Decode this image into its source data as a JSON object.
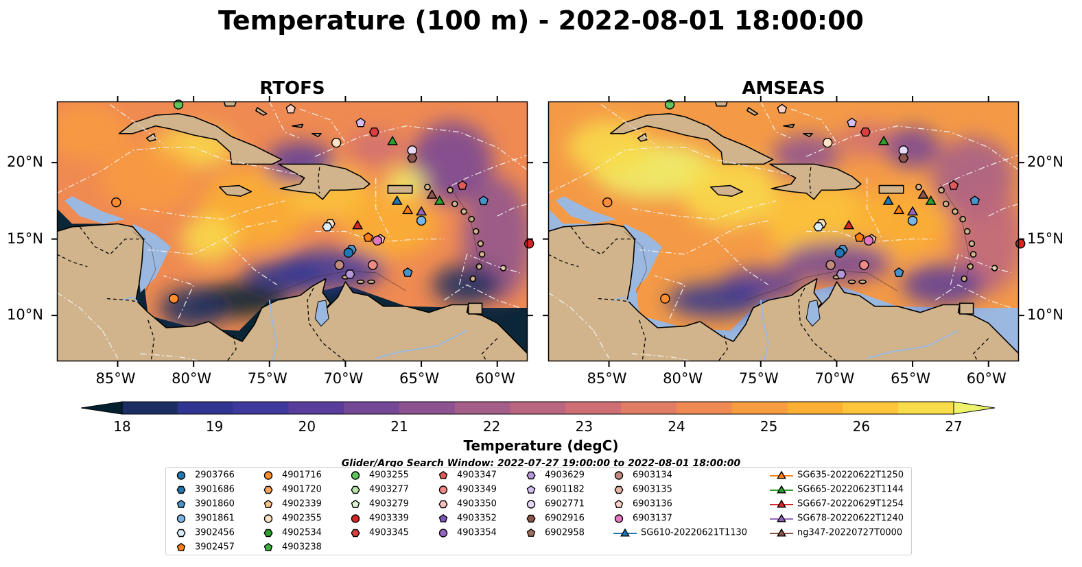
{
  "title": "Temperature (100 m) - 2022-08-01 18:00:00",
  "panels": [
    {
      "title": "RTOFS",
      "variant": "rtofs"
    },
    {
      "title": "AMSEAS",
      "variant": "amseas"
    }
  ],
  "lat_ticks": [
    "20°N",
    "15°N",
    "10°N"
  ],
  "lon_ticks": [
    "85°W",
    "80°W",
    "75°W",
    "70°W",
    "65°W",
    "60°W"
  ],
  "map_extent": {
    "lon": [
      -89,
      -58
    ],
    "lat": [
      7,
      24
    ]
  },
  "colorbar": {
    "label": "Temperature (degC)",
    "ticks": [
      "18",
      "19",
      "20",
      "21",
      "22",
      "23",
      "24",
      "25",
      "26",
      "27"
    ],
    "range": [
      18,
      27
    ],
    "extend": "both",
    "colormap": [
      "#03202f",
      "#1a2e63",
      "#2f3591",
      "#3f389d",
      "#593d9b",
      "#744797",
      "#8d5391",
      "#a55d89",
      "#bb6680",
      "#cf6f74",
      "#e17c65",
      "#ef8a52",
      "#f89c40",
      "#fcb033",
      "#fdc539",
      "#f9dc4a",
      "#eef36b"
    ]
  },
  "search_window": "Glider/Argo Search Window: 2022-07-27 19:00:00 to 2022-08-01 18:00:00",
  "colors": {
    "land": "#d2b48c",
    "shallow": "#9bb9e0",
    "coast": "#000000"
  },
  "legend": [
    {
      "label": "2903766",
      "marker": "circle",
      "color": "#1f77b4"
    },
    {
      "label": "3901686",
      "marker": "hexagon",
      "color": "#1f77b4"
    },
    {
      "label": "3901860",
      "marker": "pentagon",
      "color": "#4a93c8"
    },
    {
      "label": "3901861",
      "marker": "circle",
      "color": "#79b6e6"
    },
    {
      "label": "3902456",
      "marker": "hexagon",
      "color": "#d9ecf7"
    },
    {
      "label": "3902457",
      "marker": "pentagon",
      "color": "#ff7f0e"
    },
    {
      "label": "4901716",
      "marker": "circle",
      "color": "#ff8c2e"
    },
    {
      "label": "4901720",
      "marker": "hexagon",
      "color": "#ffa85c"
    },
    {
      "label": "4902339",
      "marker": "pentagon",
      "color": "#ffc28a"
    },
    {
      "label": "4902355",
      "marker": "circle",
      "color": "#fde3c3"
    },
    {
      "label": "4902534",
      "marker": "hexagon",
      "color": "#2ca02c"
    },
    {
      "label": "4903238",
      "marker": "pentagon",
      "color": "#3cb33c"
    },
    {
      "label": "4903255",
      "marker": "circle",
      "color": "#5ec45e"
    },
    {
      "label": "4903277",
      "marker": "hexagon",
      "color": "#b9e6a8"
    },
    {
      "label": "4903279",
      "marker": "pentagon",
      "color": "#ddf5cf"
    },
    {
      "label": "4903339",
      "marker": "circle",
      "color": "#d62728"
    },
    {
      "label": "4903345",
      "marker": "hexagon",
      "color": "#d84040"
    },
    {
      "label": "4903347",
      "marker": "pentagon",
      "color": "#e05a5a"
    },
    {
      "label": "4903349",
      "marker": "circle",
      "color": "#f08a86"
    },
    {
      "label": "4903350",
      "marker": "hexagon",
      "color": "#f8c0bc"
    },
    {
      "label": "4903352",
      "marker": "pentagon",
      "color": "#7e57b8"
    },
    {
      "label": "4903354",
      "marker": "circle",
      "color": "#9467bd"
    },
    {
      "label": "4903629",
      "marker": "hexagon",
      "color": "#b497d6"
    },
    {
      "label": "6901182",
      "marker": "pentagon",
      "color": "#d4bff0"
    },
    {
      "label": "6902771",
      "marker": "circle",
      "color": "#e7d8f7"
    },
    {
      "label": "6902916",
      "marker": "hexagon",
      "color": "#8c564b"
    },
    {
      "label": "6902958",
      "marker": "pentagon",
      "color": "#a0705f"
    },
    {
      "label": "6903134",
      "marker": "circle",
      "color": "#c08a7d"
    },
    {
      "label": "6903135",
      "marker": "hexagon",
      "color": "#e8b5a8"
    },
    {
      "label": "6903136",
      "marker": "pentagon",
      "color": "#fad3c4"
    },
    {
      "label": "6903137",
      "marker": "circle",
      "color": "#e377c2"
    },
    {
      "label": "SG610-20220621T1130",
      "marker": "triangle",
      "color": "#1f77b4",
      "line": true
    },
    {
      "label": "SG635-20220622T1250",
      "marker": "triangle",
      "color": "#ff7f0e",
      "line": true
    },
    {
      "label": "SG665-20220623T1144",
      "marker": "triangle",
      "color": "#2ca02c",
      "line": true
    },
    {
      "label": "SG667-20220629T1254",
      "marker": "triangle",
      "color": "#d62728",
      "line": true
    },
    {
      "label": "SG678-20220622T1240",
      "marker": "triangle",
      "color": "#9467bd",
      "line": true
    },
    {
      "label": "ng347-20220727T0000",
      "marker": "triangle",
      "color": "#8c564b",
      "line": true
    }
  ],
  "observations": [
    {
      "lon": -81.0,
      "lat": 23.8,
      "marker": "circle",
      "color": "#5ec45e"
    },
    {
      "lon": -73.6,
      "lat": 23.5,
      "marker": "pentagon",
      "color": "#fad3c4"
    },
    {
      "lon": -69.0,
      "lat": 22.6,
      "marker": "pentagon",
      "color": "#d4bff0"
    },
    {
      "lon": -68.1,
      "lat": 22.0,
      "marker": "hexagon",
      "color": "#d84040"
    },
    {
      "lon": -66.9,
      "lat": 21.4,
      "marker": "triangle",
      "color": "#2ca02c"
    },
    {
      "lon": -70.6,
      "lat": 21.3,
      "marker": "circle",
      "color": "#fde3c3"
    },
    {
      "lon": -65.6,
      "lat": 20.8,
      "marker": "circle",
      "color": "#e7d8f7"
    },
    {
      "lon": -65.6,
      "lat": 20.3,
      "marker": "hexagon",
      "color": "#8c564b"
    },
    {
      "lon": -62.3,
      "lat": 18.5,
      "marker": "pentagon",
      "color": "#e05a5a"
    },
    {
      "lon": -64.3,
      "lat": 17.9,
      "marker": "triangle",
      "color": "#8c564b"
    },
    {
      "lon": -63.8,
      "lat": 17.5,
      "marker": "triangle",
      "color": "#2ca02c"
    },
    {
      "lon": -66.6,
      "lat": 17.5,
      "marker": "triangle",
      "color": "#1f77b4"
    },
    {
      "lon": -60.9,
      "lat": 17.5,
      "marker": "pentagon",
      "color": "#4a93c8"
    },
    {
      "lon": -85.1,
      "lat": 17.4,
      "marker": "circle",
      "color": "#ff8c2e"
    },
    {
      "lon": -65.9,
      "lat": 16.9,
      "marker": "triangle",
      "color": "#ff7f0e"
    },
    {
      "lon": -65.0,
      "lat": 16.8,
      "marker": "triangle",
      "color": "#9467bd"
    },
    {
      "lon": -65.0,
      "lat": 16.2,
      "marker": "circle",
      "color": "#79b6e6"
    },
    {
      "lon": -71.0,
      "lat": 16.0,
      "marker": "hexagon",
      "color": "#fde3c3"
    },
    {
      "lon": -71.2,
      "lat": 15.8,
      "marker": "hexagon",
      "color": "#d9ecf7"
    },
    {
      "lon": -69.2,
      "lat": 15.9,
      "marker": "triangle",
      "color": "#d62728"
    },
    {
      "lon": -68.5,
      "lat": 15.1,
      "marker": "pentagon",
      "color": "#ff7f0e"
    },
    {
      "lon": -67.7,
      "lat": 15.0,
      "marker": "pentagon",
      "color": "#f8c0bc"
    },
    {
      "lon": -67.9,
      "lat": 14.9,
      "marker": "circle",
      "color": "#e377c2"
    },
    {
      "lon": -57.9,
      "lat": 14.7,
      "marker": "circle",
      "color": "#d62728"
    },
    {
      "lon": -69.6,
      "lat": 14.3,
      "marker": "hexagon",
      "color": "#4a93c8"
    },
    {
      "lon": -69.8,
      "lat": 14.1,
      "marker": "circle",
      "color": "#1f77b4"
    },
    {
      "lon": -70.4,
      "lat": 13.3,
      "marker": "circle",
      "color": "#c08a7d"
    },
    {
      "lon": -68.2,
      "lat": 13.3,
      "marker": "circle",
      "color": "#f08a86"
    },
    {
      "lon": -69.7,
      "lat": 12.7,
      "marker": "hexagon",
      "color": "#b497d6"
    },
    {
      "lon": -65.9,
      "lat": 12.8,
      "marker": "pentagon",
      "color": "#4a93c8"
    },
    {
      "lon": -81.3,
      "lat": 11.1,
      "marker": "circle",
      "color": "#ff8c2e"
    }
  ]
}
